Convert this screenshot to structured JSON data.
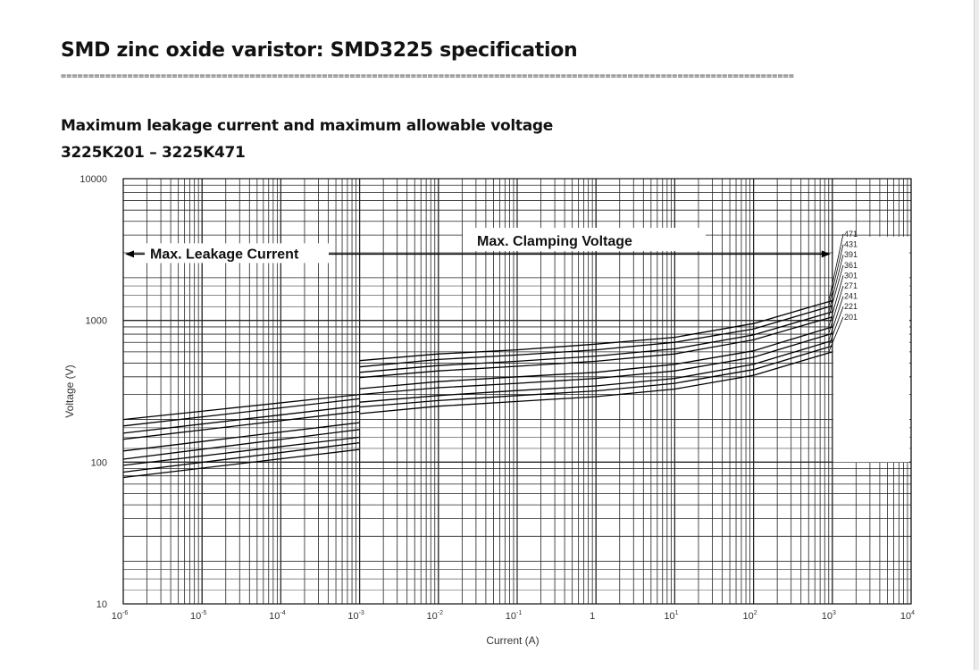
{
  "document": {
    "title": "SMD zinc oxide varistor: SMD3225 specification",
    "rule": "====================================================================================================================================",
    "subtitle": "Maximum leakage current and maximum allowable voltage",
    "subtitle2": "3225K201 – 3225K471"
  },
  "chart_data": {
    "type": "line",
    "xlabel": "Current (A)",
    "ylabel": "Voltage  (V)",
    "xscale": "log",
    "yscale": "log",
    "xlim": [
      1e-06,
      10000
    ],
    "ylim": [
      10,
      10000
    ],
    "x_tick_labels": [
      {
        "value": 1e-06,
        "base": "10",
        "exp": "-6"
      },
      {
        "value": 1e-05,
        "base": "10",
        "exp": "-5"
      },
      {
        "value": 0.0001,
        "base": "10",
        "exp": "-4"
      },
      {
        "value": 0.001,
        "base": "10",
        "exp": "-3"
      },
      {
        "value": 0.01,
        "base": "10",
        "exp": "-2"
      },
      {
        "value": 0.1,
        "base": "10",
        "exp": "-1"
      },
      {
        "value": 1,
        "base": "1",
        "exp": ""
      },
      {
        "value": 10,
        "base": "10",
        "exp": "1"
      },
      {
        "value": 100,
        "base": "10",
        "exp": "2"
      },
      {
        "value": 1000,
        "base": "10",
        "exp": "3"
      },
      {
        "value": 10000,
        "base": "10",
        "exp": "4"
      }
    ],
    "y_tick_labels": [
      {
        "value": 10,
        "label": "10"
      },
      {
        "value": 100,
        "label": "100"
      },
      {
        "value": 1000,
        "label": "1000"
      },
      {
        "value": 10000,
        "label": "10000"
      }
    ],
    "grid": true,
    "annotations": {
      "leakage": {
        "text": "Max. Leakage Current",
        "x_from": 1e-06,
        "x_to": 0.001,
        "y": 3600
      },
      "clamping": {
        "text": "Max. Clamping Voltage",
        "x_from": 0.001,
        "x_to": 1000,
        "y": 3600
      }
    },
    "leakage_series": [
      {
        "name": "471",
        "values": [
          [
            1e-06,
            200
          ],
          [
            0.001,
            300
          ]
        ]
      },
      {
        "name": "431",
        "values": [
          [
            1e-06,
            180
          ],
          [
            0.001,
            280
          ]
        ]
      },
      {
        "name": "391",
        "values": [
          [
            1e-06,
            160
          ],
          [
            0.001,
            250
          ]
        ]
      },
      {
        "name": "361",
        "values": [
          [
            1e-06,
            145
          ],
          [
            0.001,
            228
          ]
        ]
      },
      {
        "name": "301",
        "values": [
          [
            1e-06,
            120
          ],
          [
            0.001,
            190
          ]
        ]
      },
      {
        "name": "271",
        "values": [
          [
            1e-06,
            105
          ],
          [
            0.001,
            170
          ]
        ]
      },
      {
        "name": "241",
        "values": [
          [
            1e-06,
            95
          ],
          [
            0.001,
            150
          ]
        ]
      },
      {
        "name": "221",
        "values": [
          [
            1e-06,
            85
          ],
          [
            0.001,
            137
          ]
        ]
      },
      {
        "name": "201",
        "values": [
          [
            1e-06,
            78
          ],
          [
            0.001,
            123
          ]
        ]
      }
    ],
    "clamping_series": [
      {
        "name": "471",
        "values": [
          [
            0.001,
            520
          ],
          [
            0.01,
            580
          ],
          [
            0.1,
            620
          ],
          [
            1,
            680
          ],
          [
            10,
            760
          ],
          [
            100,
            950
          ],
          [
            1000,
            1380
          ]
        ]
      },
      {
        "name": "431",
        "values": [
          [
            0.001,
            470
          ],
          [
            0.01,
            530
          ],
          [
            0.1,
            570
          ],
          [
            1,
            620
          ],
          [
            10,
            700
          ],
          [
            100,
            870
          ],
          [
            1000,
            1270
          ]
        ]
      },
      {
        "name": "391",
        "values": [
          [
            0.001,
            430
          ],
          [
            0.01,
            480
          ],
          [
            0.1,
            515
          ],
          [
            1,
            560
          ],
          [
            10,
            630
          ],
          [
            100,
            790
          ],
          [
            1000,
            1150
          ]
        ]
      },
      {
        "name": "361",
        "values": [
          [
            0.001,
            395
          ],
          [
            0.01,
            440
          ],
          [
            0.1,
            475
          ],
          [
            1,
            515
          ],
          [
            10,
            580
          ],
          [
            100,
            730
          ],
          [
            1000,
            1060
          ]
        ]
      },
      {
        "name": "301",
        "values": [
          [
            0.001,
            330
          ],
          [
            0.01,
            370
          ],
          [
            0.1,
            400
          ],
          [
            1,
            430
          ],
          [
            10,
            490
          ],
          [
            100,
            610
          ],
          [
            1000,
            900
          ]
        ]
      },
      {
        "name": "271",
        "values": [
          [
            0.001,
            300
          ],
          [
            0.01,
            335
          ],
          [
            0.1,
            360
          ],
          [
            1,
            390
          ],
          [
            10,
            440
          ],
          [
            100,
            550
          ],
          [
            1000,
            810
          ]
        ]
      },
      {
        "name": "241",
        "values": [
          [
            0.001,
            265
          ],
          [
            0.01,
            295
          ],
          [
            0.1,
            320
          ],
          [
            1,
            345
          ],
          [
            10,
            390
          ],
          [
            100,
            490
          ],
          [
            1000,
            720
          ]
        ]
      },
      {
        "name": "221",
        "values": [
          [
            0.001,
            245
          ],
          [
            0.01,
            272
          ],
          [
            0.1,
            295
          ],
          [
            1,
            318
          ],
          [
            10,
            360
          ],
          [
            100,
            450
          ],
          [
            1000,
            660
          ]
        ]
      },
      {
        "name": "201",
        "values": [
          [
            0.001,
            220
          ],
          [
            0.01,
            248
          ],
          [
            0.1,
            268
          ],
          [
            1,
            290
          ],
          [
            10,
            328
          ],
          [
            100,
            410
          ],
          [
            1000,
            600
          ]
        ]
      }
    ]
  }
}
